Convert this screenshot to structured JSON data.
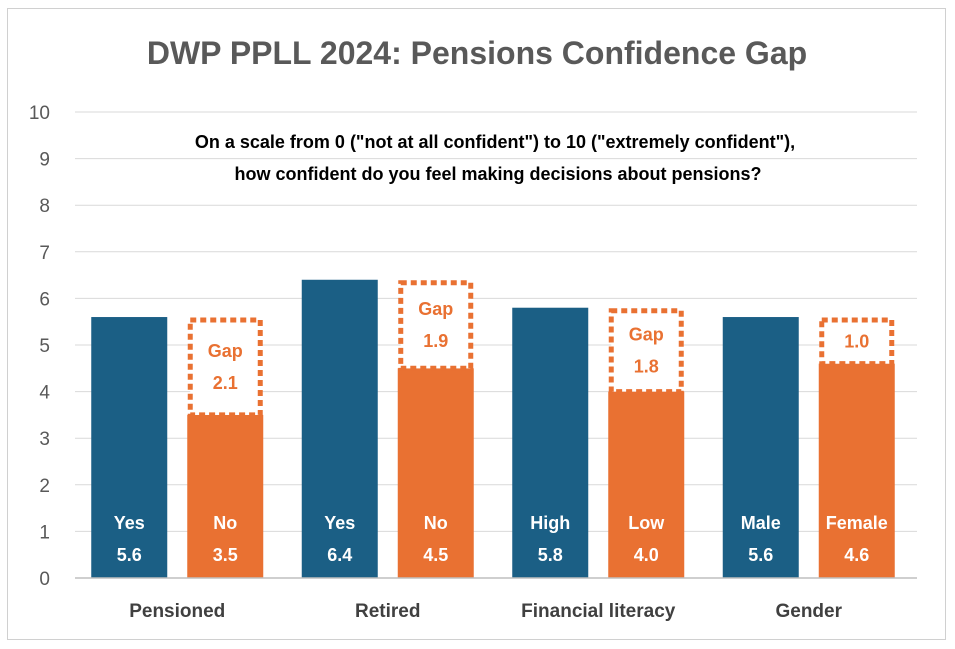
{
  "chart_data": {
    "type": "bar",
    "title": "DWP PPLL 2024: Pensions Confidence Gap",
    "subtitle_lines": [
      "On a scale from 0 (\"not at all confident\") to 10 (\"extremely confident\"),",
      "how confident do you feel making decisions about pensions?"
    ],
    "ylim": [
      0,
      10
    ],
    "yticks": [
      "0",
      "1",
      "2",
      "3",
      "4",
      "5",
      "6",
      "7",
      "8",
      "9",
      "10"
    ],
    "groups": [
      {
        "name": "Pensioned",
        "bars": [
          {
            "label": "Yes",
            "value": 5.6,
            "value_text": "5.6",
            "role": "high"
          },
          {
            "label": "No",
            "value": 3.5,
            "value_text": "3.5",
            "role": "low"
          }
        ],
        "gap": {
          "lines": [
            "Gap",
            "2.1"
          ],
          "value": 2.1
        }
      },
      {
        "name": "Retired",
        "bars": [
          {
            "label": "Yes",
            "value": 6.4,
            "value_text": "6.4",
            "role": "high"
          },
          {
            "label": "No",
            "value": 4.5,
            "value_text": "4.5",
            "role": "low"
          }
        ],
        "gap": {
          "lines": [
            "Gap",
            "1.9"
          ],
          "value": 1.9
        }
      },
      {
        "name": "Financial literacy",
        "bars": [
          {
            "label": "High",
            "value": 5.8,
            "value_text": "5.8",
            "role": "high"
          },
          {
            "label": "Low",
            "value": 4.0,
            "value_text": "4.0",
            "role": "low"
          }
        ],
        "gap": {
          "lines": [
            "Gap",
            "1.8"
          ],
          "value": 1.8
        }
      },
      {
        "name": "Gender",
        "bars": [
          {
            "label": "Male",
            "value": 5.6,
            "value_text": "5.6",
            "role": "high"
          },
          {
            "label": "Female",
            "value": 4.6,
            "value_text": "4.6",
            "role": "low"
          }
        ],
        "gap": {
          "lines": [
            "1.0"
          ],
          "value": 1.0
        }
      }
    ]
  },
  "colors": {
    "high_bar": "#1b5f85",
    "low_bar": "#e97132",
    "gap_outline": "#e97132",
    "gridline": "#d9d9d9",
    "axis": "#bfbfbf"
  }
}
